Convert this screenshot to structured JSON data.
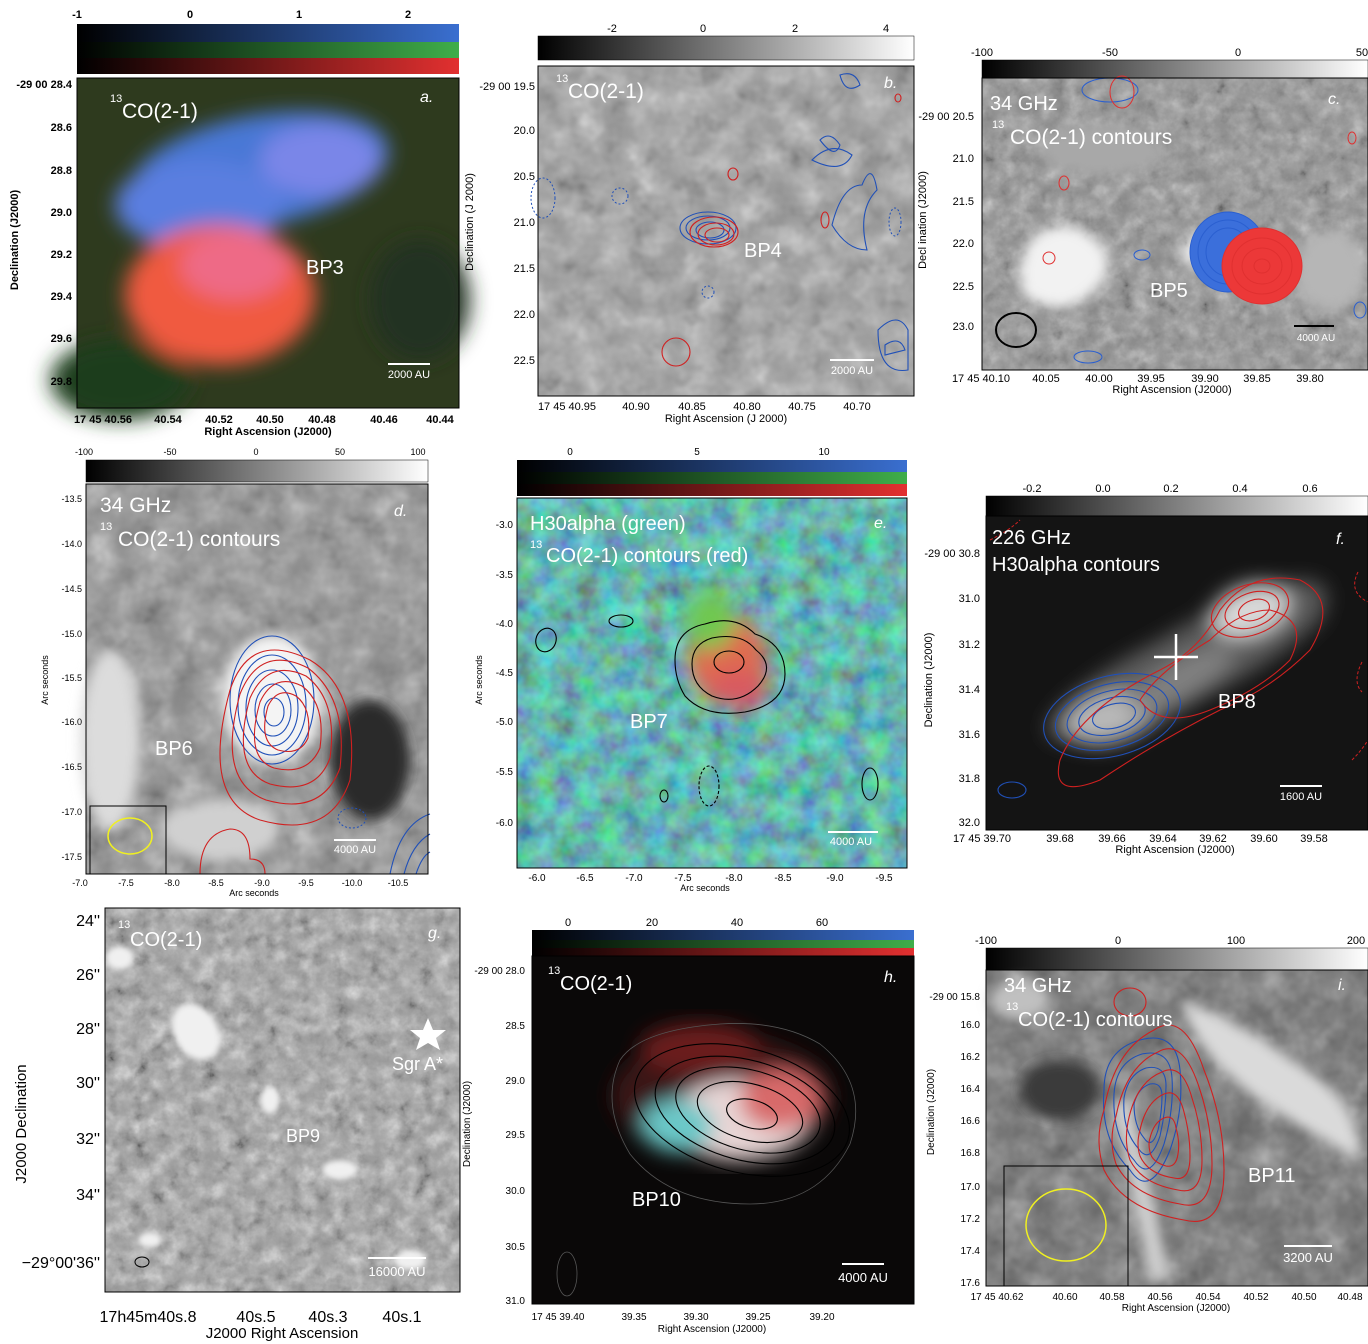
{
  "panels": {
    "a": {
      "letter": "a.",
      "line_label": "CO(2-1)",
      "iso_sup": "13",
      "source": "BP3",
      "scalebar": "2000 AU",
      "xlabel": "Right Ascension (J2000)",
      "ylabel": "Declination (J2000)",
      "xticks": [
        "17 45 40.56",
        "40.54",
        "40.52",
        "40.50",
        "40.48",
        "40.46",
        "40.44"
      ],
      "yticks": [
        "-29 00 28.4",
        "28.6",
        "28.8",
        "29.0",
        "29.2",
        "29.4",
        "29.6",
        "29.8"
      ],
      "cbar_ticks": [
        "-1",
        "0",
        "1",
        "2"
      ]
    },
    "b": {
      "letter": "b.",
      "line_label": "CO(2-1)",
      "iso_sup": "13",
      "source": "BP4",
      "scalebar": "2000 AU",
      "xlabel": "Right Ascension (J 2000)",
      "ylabel": "Declination (J 2000)",
      "xticks": [
        "17 45 40.95",
        "40.90",
        "40.85",
        "40.80",
        "40.75",
        "40.70"
      ],
      "yticks": [
        "-29 00 19.5",
        "20.0",
        "20.5",
        "21.0",
        "21.5",
        "22.0",
        "22.5"
      ],
      "cbar_ticks": [
        "-2",
        "0",
        "2",
        "4"
      ]
    },
    "c": {
      "letter": "c.",
      "freq": "34 GHz",
      "line_label": "CO(2-1) contours",
      "iso_sup": "13",
      "source": "BP5",
      "scalebar": "4000 AU",
      "xlabel": "Right Ascension (J2000)",
      "ylabel": "Decl ination (J2000)",
      "xticks": [
        "17 45 40.10",
        "40.05",
        "40.00",
        "39.95",
        "39.90",
        "39.85",
        "39.80"
      ],
      "yticks": [
        "-29 00 20.5",
        "21.0",
        "21.5",
        "22.0",
        "22.5",
        "23.0"
      ],
      "cbar_ticks": [
        "-100",
        "-50",
        "0",
        "50"
      ]
    },
    "d": {
      "letter": "d.",
      "freq": "34 GHz",
      "line_label": "CO(2-1) contours",
      "iso_sup": "13",
      "source": "BP6",
      "scalebar": "4000 AU",
      "xlabel": "Arc seconds",
      "ylabel": "Arc seconds",
      "xticks": [
        "-7.0",
        "-7.5",
        "-8.0",
        "-8.5",
        "-9.0",
        "-9.5",
        "-10.0",
        "-10.5"
      ],
      "yticks": [
        "-13.5",
        "-14.0",
        "-14.5",
        "-15.0",
        "-15.5",
        "-16.0",
        "-16.5",
        "-17.0",
        "-17.5"
      ],
      "cbar_ticks": [
        "-100",
        "-50",
        "0",
        "50",
        "100"
      ]
    },
    "e": {
      "letter": "e.",
      "line1": "H30alpha (green)",
      "line_label": "CO(2-1) contours (red)",
      "iso_sup": "13",
      "source": "BP7",
      "scalebar": "4000 AU",
      "xlabel": "Arc seconds",
      "ylabel": "Arc seconds",
      "xticks": [
        "-6.0",
        "-6.5",
        "-7.0",
        "-7.5",
        "-8.0",
        "-8.5",
        "-9.0",
        "-9.5"
      ],
      "yticks": [
        "-3.0",
        "-3.5",
        "-4.0",
        "-4.5",
        "-5.0",
        "-5.5",
        "-6.0"
      ],
      "cbar_ticks": [
        "0",
        "5",
        "10"
      ]
    },
    "f": {
      "letter": "f.",
      "freq": "226 GHz",
      "line_label": "H30alpha contours",
      "source": "BP8",
      "scalebar": "1600 AU",
      "xlabel": "Right Ascension (J2000)",
      "ylabel": "Declination (J2000)",
      "xticks": [
        "17 45 39.70",
        "39.68",
        "39.66",
        "39.64",
        "39.62",
        "39.60",
        "39.58"
      ],
      "yticks": [
        "-29 00 30.8",
        "31.0",
        "31.2",
        "31.4",
        "31.6",
        "31.8",
        "32.0"
      ],
      "cbar_ticks": [
        "-0.2",
        "0.0",
        "0.2",
        "0.4",
        "0.6"
      ]
    },
    "g": {
      "letter": "g.",
      "line_label": "CO(2-1)",
      "iso_sup": "13",
      "source": "BP9",
      "star_label": "Sgr A*",
      "scalebar": "16000 AU",
      "xlabel": "J2000 Right Ascension",
      "ylabel": "J2000 Declination",
      "xticks": [
        "17h45m40s.8",
        "40s.5",
        "40s.3",
        "40s.1"
      ],
      "yticks": [
        "24''",
        "26''",
        "28''",
        "30''",
        "32''",
        "34''",
        "−29°00'36''"
      ]
    },
    "h": {
      "letter": "h.",
      "line_label": "CO(2-1)",
      "iso_sup": "13",
      "source": "BP10",
      "scalebar": "4000 AU",
      "xlabel": "Right Ascension (J2000)",
      "ylabel": "Declination (J2000)",
      "xticks": [
        "17 45 39.40",
        "39.35",
        "39.30",
        "39.25",
        "39.20"
      ],
      "yticks": [
        "-29 00 28.0",
        "28.5",
        "29.0",
        "29.5",
        "30.0",
        "30.5",
        "31.0"
      ],
      "cbar_ticks": [
        "0",
        "20",
        "40",
        "60"
      ]
    },
    "i": {
      "letter": "i.",
      "freq": "34 GHz",
      "line_label": "CO(2-1) contours",
      "iso_sup": "13",
      "source": "BP11",
      "scalebar": "3200 AU",
      "xlabel": "Right Ascension (J2000)",
      "ylabel": "Declination (J2000)",
      "xticks": [
        "17 45 40.62",
        "40.60",
        "40.58",
        "40.56",
        "40.54",
        "40.52",
        "40.50",
        "40.48"
      ],
      "yticks": [
        "-29 00 15.8",
        "16.0",
        "16.2",
        "16.4",
        "16.6",
        "16.8",
        "17.0",
        "17.2",
        "17.4",
        "17.6"
      ],
      "cbar_ticks": [
        "-100",
        "0",
        "100",
        "200"
      ]
    }
  }
}
